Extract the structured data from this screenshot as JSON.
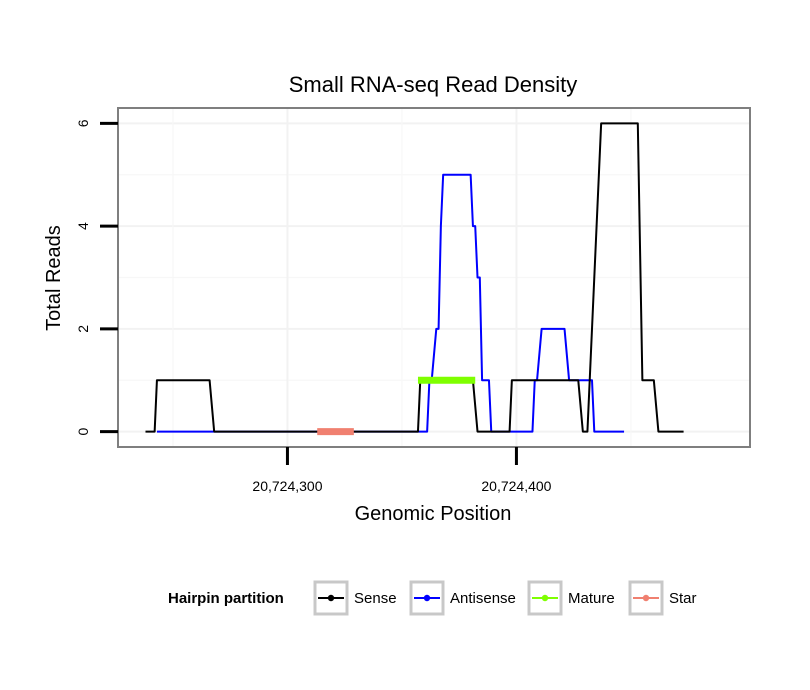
{
  "chart_data": {
    "type": "line",
    "title": "Small RNA-seq Read Density",
    "xlabel": "Genomic Position",
    "ylabel": "Total Reads",
    "xlim": [
      20724226,
      20724502
    ],
    "ylim": [
      -0.3,
      6.3
    ],
    "x_ticks": [
      {
        "value": 20724300,
        "label": "20,724,300"
      },
      {
        "value": 20724400,
        "label": "20,724,400"
      }
    ],
    "y_ticks": [
      {
        "value": 0,
        "label": "0"
      },
      {
        "value": 2,
        "label": "2"
      },
      {
        "value": 4,
        "label": "4"
      },
      {
        "value": 6,
        "label": "6"
      }
    ],
    "grid": true,
    "legend": {
      "title": "Hairpin partition",
      "placement": "bottom",
      "entries": [
        {
          "name": "Sense",
          "color": "#000000"
        },
        {
          "name": "Antisense",
          "color": "#0000ff"
        },
        {
          "name": "Mature",
          "color": "#7fff00"
        },
        {
          "name": "Star",
          "color": "#f08070"
        }
      ]
    },
    "series": [
      {
        "name": "Sense",
        "color": "#000000",
        "kind": "line",
        "x": [
          20724238,
          20724242,
          20724243,
          20724266,
          20724268,
          20724356,
          20724357,
          20724358,
          20724381,
          20724383,
          20724388,
          20724390,
          20724397,
          20724398,
          20724399,
          20724427,
          20724429,
          20724431,
          20724432,
          20724436,
          20724437,
          20724453,
          20724455,
          20724460,
          20724462,
          20724464,
          20724473
        ],
        "y": [
          0,
          0,
          1,
          1,
          0,
          0,
          0,
          1,
          1,
          0,
          0,
          0,
          0,
          1,
          1,
          1,
          0,
          0,
          1,
          5,
          6,
          6,
          1,
          1,
          0,
          0,
          0
        ]
      },
      {
        "name": "Antisense",
        "color": "#0000ff",
        "kind": "line",
        "x": [
          20724243,
          20724266,
          20724268,
          20724361,
          20724362,
          20724363,
          20724365,
          20724366,
          20724367,
          20724368,
          20724380,
          20724381,
          20724382,
          20724383,
          20724384,
          20724385,
          20724386,
          20724388,
          20724389,
          20724391,
          20724393,
          20724407,
          20724408,
          20724409,
          20724411,
          20724421,
          20724423,
          20724424,
          20724426,
          20724428,
          20724433,
          20724434,
          20724435,
          20724447
        ],
        "y": [
          0,
          0,
          0,
          0,
          1,
          1,
          2,
          2,
          4,
          5,
          5,
          4,
          4,
          3,
          3,
          1,
          1,
          1,
          0,
          0,
          0,
          0,
          1,
          1,
          2,
          2,
          1,
          1,
          1,
          1,
          1,
          0,
          0,
          0
        ]
      },
      {
        "name": "Mature",
        "color": "#7fff00",
        "kind": "segment",
        "x": [
          20724357,
          20724382
        ],
        "y": [
          1,
          1
        ]
      },
      {
        "name": "Star",
        "color": "#f08070",
        "kind": "segment",
        "x": [
          20724313,
          20724329
        ],
        "y": [
          0,
          0
        ]
      }
    ]
  }
}
